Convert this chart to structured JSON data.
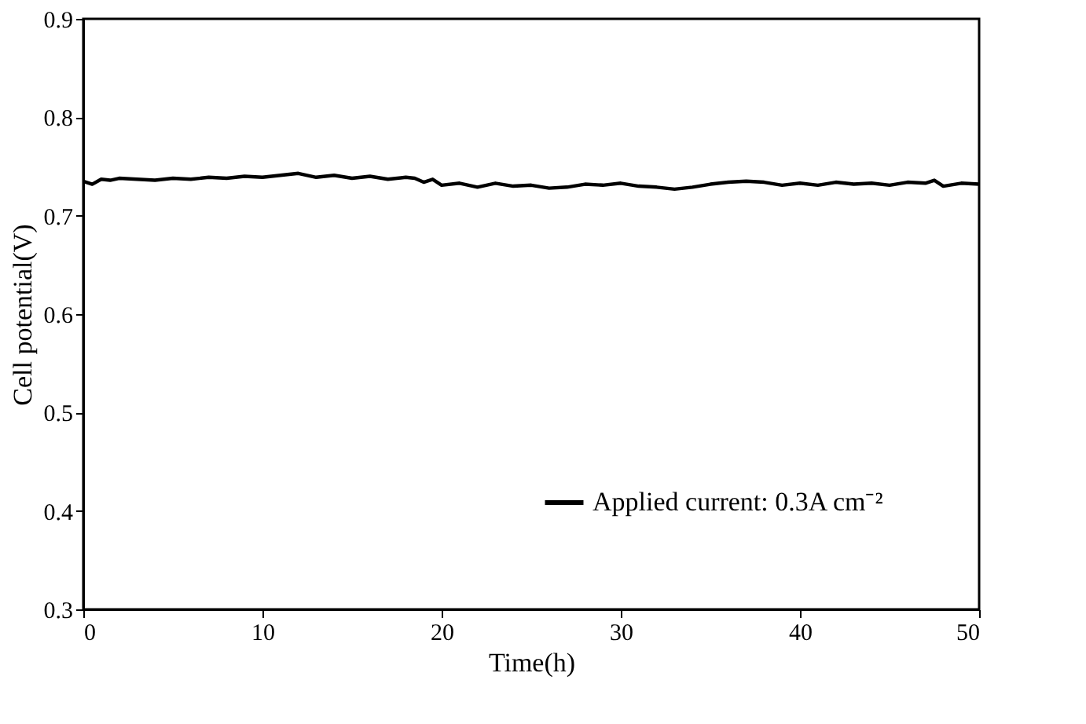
{
  "chart_data": {
    "type": "line",
    "xlabel": "Time(h)",
    "ylabel": "Cell potential(V)",
    "xlim": [
      0,
      50
    ],
    "xticks": [
      0,
      10,
      20,
      30,
      40,
      50
    ],
    "ylim": [
      0.3,
      0.9
    ],
    "yticks": [
      0.3,
      0.4,
      0.5,
      0.6,
      0.7,
      0.8,
      0.9
    ],
    "grid": false,
    "legend": "bottom right",
    "marker": "none",
    "line_style": "solid",
    "series": [
      {
        "name": "Applied current: 0.3A cm⁻²",
        "color": "#000000",
        "x": [
          0,
          0.5,
          1,
          1.5,
          2,
          3,
          4,
          5,
          6,
          7,
          8,
          9,
          10,
          11,
          12,
          12.5,
          13,
          14,
          15,
          16,
          17,
          18,
          18.5,
          19,
          19.5,
          20,
          21,
          22,
          23,
          24,
          25,
          26,
          27,
          28,
          29,
          30,
          31,
          32,
          33,
          34,
          35,
          36,
          37,
          38,
          39,
          40,
          41,
          42,
          43,
          44,
          45,
          46,
          47,
          47.5,
          48,
          49,
          50
        ],
        "values": [
          0.735,
          0.732,
          0.737,
          0.736,
          0.738,
          0.737,
          0.736,
          0.738,
          0.737,
          0.739,
          0.738,
          0.74,
          0.739,
          0.741,
          0.743,
          0.741,
          0.739,
          0.741,
          0.738,
          0.74,
          0.737,
          0.739,
          0.738,
          0.734,
          0.737,
          0.731,
          0.733,
          0.729,
          0.733,
          0.73,
          0.731,
          0.728,
          0.729,
          0.732,
          0.731,
          0.733,
          0.73,
          0.729,
          0.727,
          0.729,
          0.732,
          0.734,
          0.735,
          0.734,
          0.731,
          0.733,
          0.731,
          0.734,
          0.732,
          0.733,
          0.731,
          0.734,
          0.733,
          0.736,
          0.73,
          0.733,
          0.732
        ]
      }
    ]
  }
}
